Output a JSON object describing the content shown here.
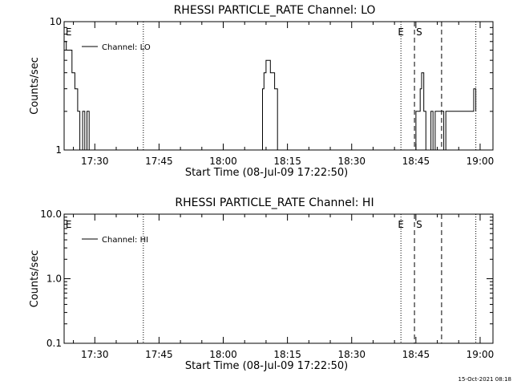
{
  "footer": {
    "timestamp": "15-Oct-2021 08:18"
  },
  "chart_data": [
    {
      "type": "line",
      "title": "RHESSI PARTICLE_RATE Channel: LO",
      "xlabel": "Start Time (08-Jul-09 17:22:50)",
      "ylabel": "Counts/sec",
      "y_scale": "log",
      "ylim": [
        1,
        10
      ],
      "xlim": [
        "17:22:50",
        "19:03:00"
      ],
      "yticks": [
        "1",
        "10"
      ],
      "xticks": [
        "17:30",
        "17:45",
        "18:00",
        "18:15",
        "18:30",
        "18:45",
        "19:00"
      ],
      "legend": {
        "position": "top-left",
        "entries": [
          "Channel: LO"
        ]
      },
      "markers": [
        {
          "label": "E",
          "time": "17:23:00",
          "style": "none"
        },
        {
          "label": "",
          "time": "17:41:20",
          "style": "dotted"
        },
        {
          "label": "E",
          "time": "18:41:30",
          "style": "dotted"
        },
        {
          "label": "S",
          "time": "18:44:40",
          "style": "dashed"
        },
        {
          "label": "",
          "time": "18:51:00",
          "style": "dashed"
        },
        {
          "label": "",
          "time": "18:59:00",
          "style": "dotted"
        }
      ],
      "series": [
        {
          "name": "Channel: LO",
          "x": [
            "17:22:50",
            "17:23:20",
            "17:24:00",
            "17:24:40",
            "17:25:20",
            "17:26:00",
            "17:26:30",
            "17:27:10",
            "17:27:40",
            "17:28:10",
            "17:28:40",
            "17:29:10",
            "18:08:40",
            "18:09:10",
            "18:09:30",
            "18:10:00",
            "18:10:30",
            "18:11:00",
            "18:11:30",
            "18:12:00",
            "18:12:40",
            "18:44:40",
            "18:45:00",
            "18:45:30",
            "18:46:00",
            "18:46:20",
            "18:46:50",
            "18:47:20",
            "18:48:30",
            "18:49:00",
            "18:49:30",
            "18:50:30",
            "18:51:30",
            "18:52:00",
            "18:53:00",
            "18:55:00",
            "18:57:00",
            "18:58:00",
            "18:58:30",
            "18:59:00"
          ],
          "y": [
            7,
            6,
            6,
            4,
            3,
            2,
            1,
            2,
            1,
            2,
            1,
            1,
            1,
            3,
            4,
            5,
            5,
            4,
            4,
            3,
            1,
            1,
            2,
            2,
            3,
            4,
            2,
            1,
            2,
            1,
            2,
            2,
            1,
            2,
            2,
            2,
            2,
            2,
            3,
            2
          ]
        }
      ]
    },
    {
      "type": "line",
      "title": "RHESSI PARTICLE_RATE Channel: HI",
      "xlabel": "Start Time (08-Jul-09 17:22:50)",
      "ylabel": "Counts/sec",
      "y_scale": "log",
      "ylim": [
        0.1,
        10
      ],
      "xlim": [
        "17:22:50",
        "19:03:00"
      ],
      "yticks": [
        "0.1",
        "1.0",
        "10.0"
      ],
      "xticks": [
        "17:30",
        "17:45",
        "18:00",
        "18:15",
        "18:30",
        "18:45",
        "19:00"
      ],
      "legend": {
        "position": "top-left",
        "entries": [
          "Channel: HI"
        ]
      },
      "markers": [
        {
          "label": "E",
          "time": "17:23:00",
          "style": "none"
        },
        {
          "label": "",
          "time": "17:41:20",
          "style": "dotted"
        },
        {
          "label": "E",
          "time": "18:41:30",
          "style": "dotted"
        },
        {
          "label": "S",
          "time": "18:44:40",
          "style": "dashed"
        },
        {
          "label": "",
          "time": "18:51:00",
          "style": "dashed"
        },
        {
          "label": "",
          "time": "18:59:00",
          "style": "dotted"
        }
      ],
      "series": [
        {
          "name": "Channel: HI",
          "x": [],
          "y": []
        }
      ]
    }
  ]
}
